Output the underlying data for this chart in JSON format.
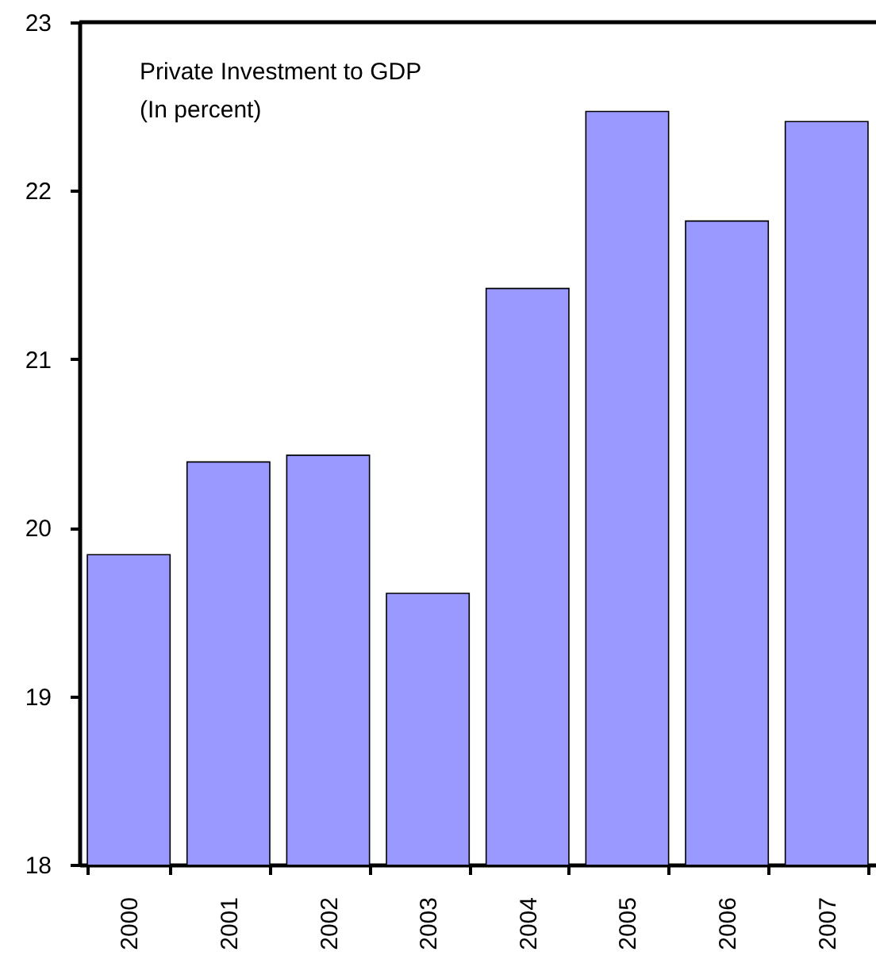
{
  "chart_data": {
    "type": "bar",
    "title": "Private Investment to GDP",
    "subtitle": "(In percent)",
    "categories": [
      "2000",
      "2001",
      "2002",
      "2003",
      "2004",
      "2005",
      "2006",
      "2007"
    ],
    "values": [
      19.84,
      20.39,
      20.43,
      19.61,
      21.42,
      22.47,
      21.82,
      22.41
    ],
    "color": "#9999ff",
    "ylim": [
      18,
      23
    ],
    "yticks": [
      18,
      19,
      20,
      21,
      22,
      23
    ],
    "grid": false
  }
}
